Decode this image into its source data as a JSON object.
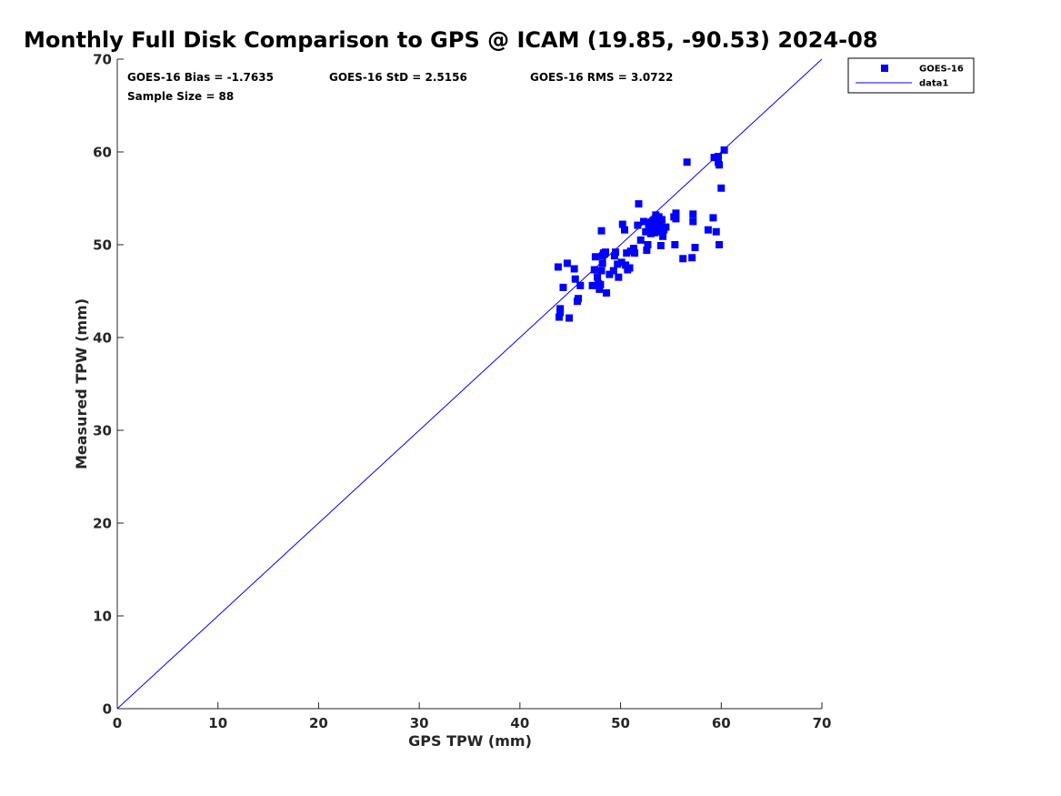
{
  "chart_data": {
    "type": "scatter",
    "title": "Monthly Full Disk Comparison to GPS @ ICAM (19.85, -90.53) 2024-08",
    "xlabel": "GPS TPW (mm)",
    "ylabel": "Measured TPW (mm)",
    "xlim": [
      0,
      70
    ],
    "ylim": [
      0,
      70
    ],
    "xticks": [
      0,
      10,
      20,
      30,
      40,
      50,
      60,
      70
    ],
    "yticks": [
      0,
      10,
      20,
      30,
      40,
      50,
      60,
      70
    ],
    "grid": false,
    "legend_position": "top-right, outside plot",
    "annotations": [
      "GOES-16 Bias = -1.7635",
      "GOES-16 StD = 2.5156",
      "GOES-16 RMS = 3.0722",
      "Sample Size = 88"
    ],
    "series": [
      {
        "name": "GOES-16",
        "marker": "square",
        "color": "#0000ff",
        "points": [
          [
            43.8,
            47.6
          ],
          [
            43.9,
            42.2
          ],
          [
            44.0,
            42.7
          ],
          [
            44.0,
            43.1
          ],
          [
            44.3,
            45.4
          ],
          [
            44.7,
            48.0
          ],
          [
            44.9,
            42.1
          ],
          [
            45.4,
            47.4
          ],
          [
            45.5,
            46.3
          ],
          [
            45.7,
            43.9
          ],
          [
            45.8,
            44.2
          ],
          [
            46.0,
            45.6
          ],
          [
            47.2,
            45.6
          ],
          [
            47.4,
            47.3
          ],
          [
            47.5,
            48.7
          ],
          [
            47.7,
            46.5
          ],
          [
            47.8,
            45.8
          ],
          [
            47.9,
            45.2
          ],
          [
            48.0,
            45.7
          ],
          [
            48.1,
            47.2
          ],
          [
            48.1,
            51.5
          ],
          [
            48.2,
            48.0
          ],
          [
            48.2,
            48.8
          ],
          [
            48.3,
            49.1
          ],
          [
            48.5,
            49.2
          ],
          [
            48.6,
            44.8
          ],
          [
            48.9,
            46.8
          ],
          [
            49.3,
            47.2
          ],
          [
            49.4,
            48.8
          ],
          [
            49.5,
            49.2
          ],
          [
            49.7,
            47.9
          ],
          [
            49.8,
            46.5
          ],
          [
            50.1,
            48.1
          ],
          [
            50.2,
            52.2
          ],
          [
            50.4,
            51.6
          ],
          [
            50.5,
            47.8
          ],
          [
            50.6,
            49.1
          ],
          [
            50.7,
            47.3
          ],
          [
            50.9,
            47.5
          ],
          [
            51.0,
            49.3
          ],
          [
            51.3,
            49.6
          ],
          [
            51.4,
            49.1
          ],
          [
            51.7,
            52.1
          ],
          [
            51.8,
            54.4
          ],
          [
            52.0,
            50.5
          ],
          [
            52.3,
            52.5
          ],
          [
            52.5,
            51.4
          ],
          [
            52.6,
            49.4
          ],
          [
            52.7,
            50.0
          ],
          [
            52.8,
            51.9
          ],
          [
            52.9,
            52.4
          ],
          [
            53.0,
            51.2
          ],
          [
            53.1,
            51.7
          ],
          [
            53.2,
            52.1
          ],
          [
            53.3,
            52.6
          ],
          [
            53.4,
            51.3
          ],
          [
            53.5,
            53.2
          ],
          [
            53.6,
            51.6
          ],
          [
            53.7,
            52.0
          ],
          [
            53.8,
            53.0
          ],
          [
            53.9,
            52.4
          ],
          [
            54.0,
            49.9
          ],
          [
            54.0,
            51.4
          ],
          [
            54.1,
            52.7
          ],
          [
            54.2,
            50.9
          ],
          [
            54.3,
            51.6
          ],
          [
            54.5,
            51.9
          ],
          [
            55.4,
            50.0
          ],
          [
            55.5,
            52.8
          ],
          [
            55.5,
            53.4
          ],
          [
            56.2,
            48.5
          ],
          [
            56.6,
            58.9
          ],
          [
            57.1,
            48.6
          ],
          [
            57.2,
            53.3
          ],
          [
            57.2,
            52.5
          ],
          [
            57.4,
            49.7
          ],
          [
            58.7,
            51.6
          ],
          [
            59.2,
            52.9
          ],
          [
            59.3,
            59.4
          ],
          [
            59.5,
            51.4
          ],
          [
            59.7,
            59.5
          ],
          [
            59.7,
            58.9
          ],
          [
            59.8,
            58.6
          ],
          [
            59.8,
            50.0
          ],
          [
            60.0,
            56.1
          ],
          [
            60.3,
            60.2
          ],
          [
            55.3,
            53.0
          ],
          [
            48.4,
            49.0
          ]
        ]
      },
      {
        "name": "data1",
        "type": "line",
        "color": "#0000ff",
        "points": [
          [
            0,
            0
          ],
          [
            70,
            70
          ]
        ]
      }
    ]
  }
}
